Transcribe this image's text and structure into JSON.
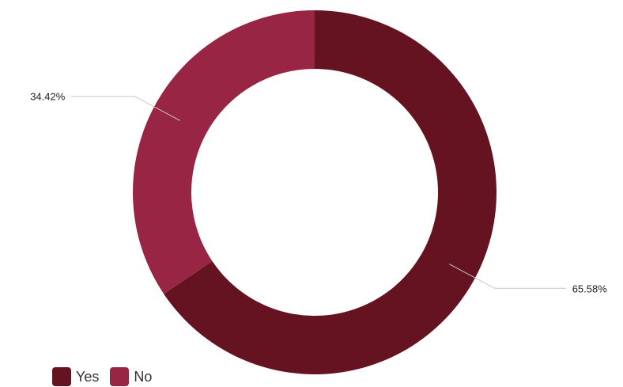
{
  "chart_data": {
    "type": "pie",
    "donut": true,
    "title": "",
    "slices": [
      {
        "name": "Yes",
        "value": 65.58,
        "label": "65.58%",
        "color": "#651320"
      },
      {
        "name": "No",
        "value": 34.42,
        "label": "34.42%",
        "color": "#982543"
      }
    ],
    "start_angle_deg": 0,
    "direction": "clockwise",
    "legend_position": "bottom-left"
  }
}
